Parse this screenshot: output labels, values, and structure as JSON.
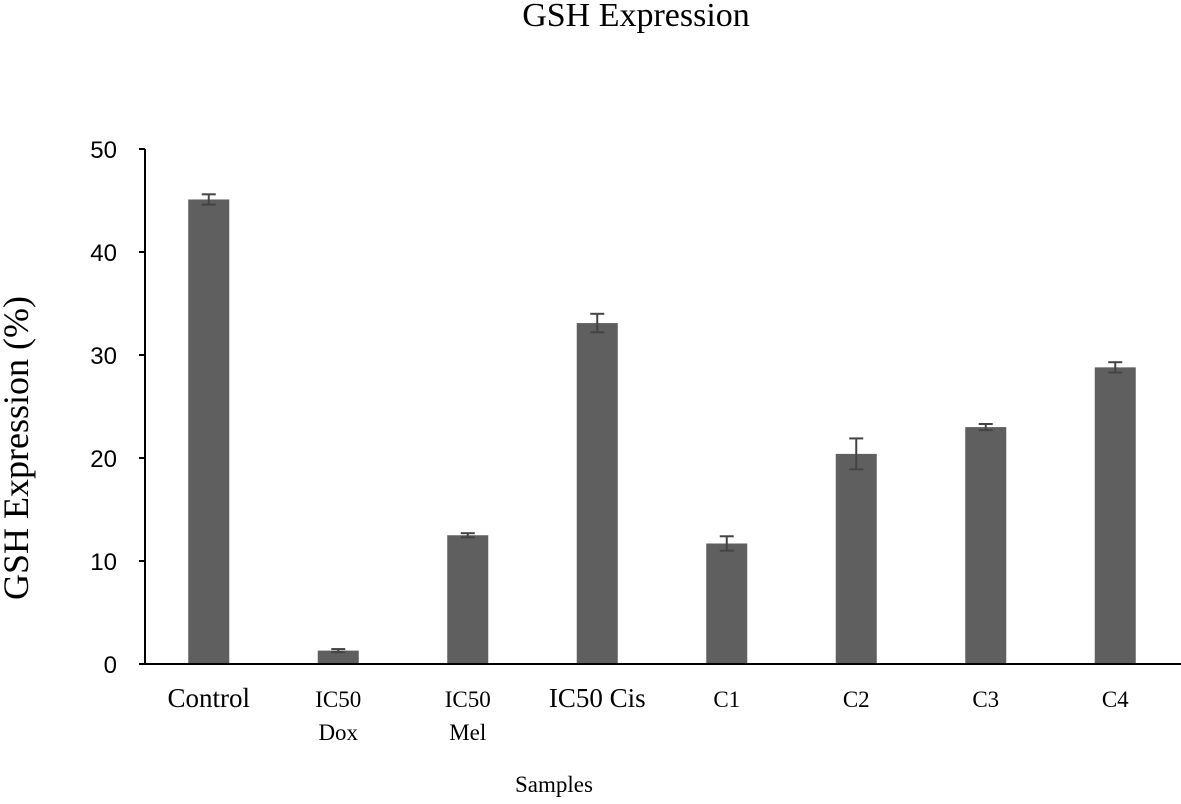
{
  "chart_data": {
    "type": "bar",
    "title": "GSH Expression",
    "xlabel": "Samples",
    "ylabel": "GSH Expression (%)",
    "ylim": [
      0,
      50
    ],
    "yticks": [
      0,
      10,
      20,
      30,
      40,
      50
    ],
    "grid": false,
    "legend": "none",
    "bar_color": "#5f5f5f",
    "categories": [
      [
        "Control"
      ],
      [
        "IC50",
        "Dox"
      ],
      [
        "IC50",
        "Mel"
      ],
      [
        "IC50 Cis"
      ],
      [
        "C1"
      ],
      [
        "C2"
      ],
      [
        "C3"
      ],
      [
        "C4"
      ]
    ],
    "values": [
      45.1,
      1.3,
      12.5,
      33.1,
      11.7,
      20.4,
      23.0,
      28.8
    ],
    "errors": [
      0.5,
      0.15,
      0.2,
      0.9,
      0.7,
      1.5,
      0.3,
      0.5
    ]
  }
}
